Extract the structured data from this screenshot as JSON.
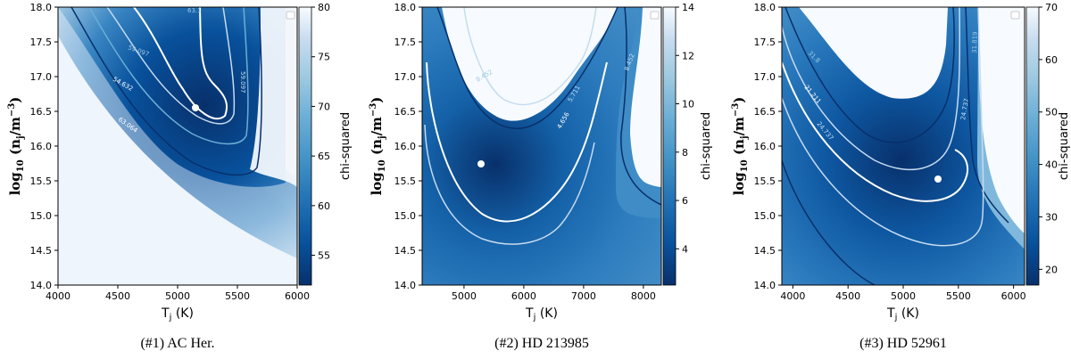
{
  "chart_data": [
    {
      "type": "heatmap",
      "caption": "(#1) AC Her.",
      "xlabel": "T_j (K)",
      "ylabel": "log10(n_j/m^-3)",
      "xlim": [
        4000,
        6000
      ],
      "ylim": [
        14.0,
        18.0
      ],
      "xticks": [
        4000,
        4500,
        5000,
        5500,
        6000
      ],
      "yticks": [
        14.0,
        14.5,
        15.0,
        15.5,
        16.0,
        16.5,
        17.0,
        17.5,
        18.0
      ],
      "colorbar": {
        "label": "chi-squared",
        "range": [
          52,
          80
        ],
        "ticks": [
          55,
          60,
          65,
          70,
          75,
          80
        ]
      },
      "best_fit": {
        "x": 5150,
        "y": 16.6
      },
      "contour_labels": [
        "63.1",
        "59.097",
        "54.632",
        "63.064",
        "59.097"
      ],
      "legend": "top-right (empty)"
    },
    {
      "type": "heatmap",
      "caption": "(#2) HD 213985",
      "xlabel": "T_j (K)",
      "ylabel": "log10(n_j/m^-3)",
      "xlim": [
        4300,
        8300
      ],
      "ylim": [
        14.0,
        18.0
      ],
      "xticks": [
        5000,
        6000,
        7000,
        8000
      ],
      "yticks": [
        14.0,
        14.5,
        15.0,
        15.5,
        16.0,
        16.5,
        17.0,
        17.5,
        18.0
      ],
      "colorbar": {
        "label": "chi-squared",
        "range": [
          2.5,
          14
        ],
        "ticks": [
          4,
          6,
          8,
          10,
          12,
          14
        ]
      },
      "best_fit": {
        "x": 5700,
        "y": 15.75
      },
      "contour_labels": [
        "8.452",
        "4.656",
        "5.711",
        "8.452"
      ],
      "legend": "top-right (empty)"
    },
    {
      "type": "heatmap",
      "caption": "(#3) HD 52961",
      "xlabel": "T_j (K)",
      "ylabel": "log10(n_j/m^-3)",
      "xlim": [
        3900,
        6100
      ],
      "ylim": [
        14.0,
        18.0
      ],
      "xticks": [
        4000,
        4500,
        5000,
        5500,
        6000
      ],
      "yticks": [
        14.0,
        14.5,
        15.0,
        15.5,
        16.0,
        16.5,
        17.0,
        17.5,
        18.0
      ],
      "colorbar": {
        "label": "chi-squared",
        "range": [
          17,
          70
        ],
        "ticks": [
          20,
          30,
          40,
          50,
          60,
          70
        ]
      },
      "best_fit": {
        "x": 5320,
        "y": 15.53
      },
      "contour_labels": [
        "31.8",
        "21.211",
        "24.737",
        "24.737",
        "31.819"
      ],
      "legend": "top-right (empty)"
    }
  ]
}
